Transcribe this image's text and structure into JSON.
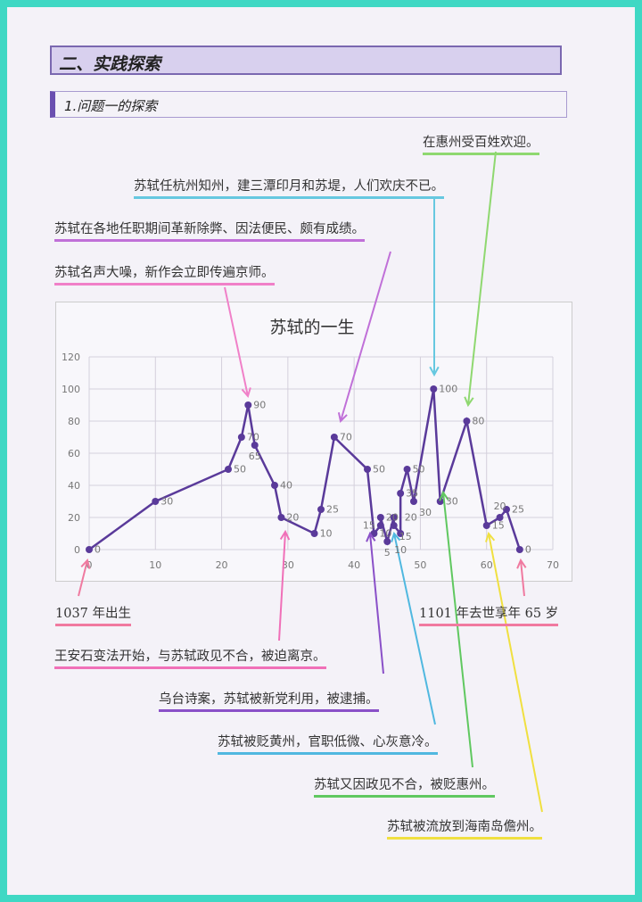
{
  "section_title": "二、实践探索",
  "subsection_title": "1.问题一的探索",
  "annotations": [
    {
      "text": "在惠州受百姓欢迎。",
      "color": "#8fd870"
    },
    {
      "text": "苏轼任杭州知州，建三潭印月和苏堤，人们欢庆不已。",
      "color": "#66c8e0"
    },
    {
      "text": "苏轼在各地任职期间革新除弊、因法便民、颇有成绩。",
      "color": "#c070d8"
    },
    {
      "text": "苏轼名声大噪，新作会立即传遍京师。",
      "color": "#f080c8"
    },
    {
      "text": "1037 年出生",
      "color": "#f07aa0"
    },
    {
      "text": "1101 年去世享年 65 岁",
      "color": "#f07aa0"
    },
    {
      "text": "王安石变法开始，与苏轼政见不合，被迫离京。",
      "color": "#f070b8"
    },
    {
      "text": "乌台诗案，苏轼被新党利用，被逮捕。",
      "color": "#8a50c8"
    },
    {
      "text": "苏轼被贬黄州，官职低微、心灰意冷。",
      "color": "#50b8e0"
    },
    {
      "text": "苏轼又因政见不合，被贬惠州。",
      "color": "#60c860"
    },
    {
      "text": "苏轼被流放到海南岛儋州。",
      "color": "#f0e040"
    }
  ],
  "chart_data": {
    "type": "line",
    "title": "苏轼的一生",
    "xlim": [
      0,
      70
    ],
    "ylim": [
      0,
      120
    ],
    "xticks": [
      0,
      10,
      20,
      30,
      40,
      50,
      60,
      70
    ],
    "yticks": [
      0,
      20,
      40,
      60,
      80,
      100,
      120
    ],
    "grid": true,
    "line_color": "#5a3a9a",
    "points": [
      [
        0,
        0
      ],
      [
        10,
        30
      ],
      [
        21,
        50
      ],
      [
        23,
        70
      ],
      [
        24,
        90
      ],
      [
        25,
        65
      ],
      [
        28,
        40
      ],
      [
        29,
        20
      ],
      [
        34,
        10
      ],
      [
        35,
        25
      ],
      [
        37,
        70
      ],
      [
        42,
        50
      ],
      [
        43,
        10
      ],
      [
        44,
        15
      ],
      [
        44,
        20
      ],
      [
        45,
        5
      ],
      [
        46,
        20
      ],
      [
        46,
        15
      ],
      [
        47,
        10
      ],
      [
        47,
        35
      ],
      [
        48,
        50
      ],
      [
        49,
        30
      ],
      [
        52,
        100
      ],
      [
        53,
        30
      ],
      [
        57,
        80
      ],
      [
        60,
        15
      ],
      [
        62,
        20
      ],
      [
        63,
        25
      ],
      [
        65,
        0
      ]
    ]
  }
}
